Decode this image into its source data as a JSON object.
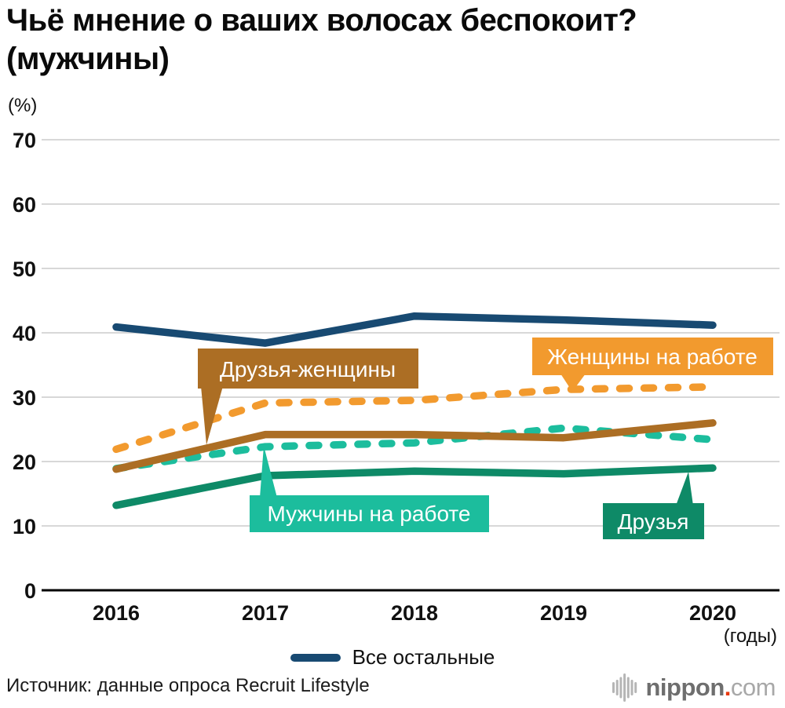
{
  "title": {
    "line1": "Чьё мнение о ваших волосах беспокоит?",
    "line2": "(мужчины)"
  },
  "axis": {
    "y_unit": "(%)",
    "x_unit": "(годы)",
    "y_ticks": [
      "70",
      "60",
      "50",
      "40",
      "30",
      "20",
      "10",
      "0"
    ],
    "x_ticks": [
      "2016",
      "2017",
      "2018",
      "2019",
      "2020"
    ]
  },
  "legend": {
    "label": "Все остальные"
  },
  "callouts": [
    {
      "label": "Друзья-женщины",
      "color": "#ac6e24"
    },
    {
      "label": "Женщины на работе",
      "color": "#f29a2e"
    },
    {
      "label": "Мужчины на работе",
      "color": "#1cbd9d"
    },
    {
      "label": "Друзья",
      "color": "#0e8a67"
    }
  ],
  "source": {
    "text": "Источник: данные опроса Recruit Lifestyle"
  },
  "logo": {
    "name": "nippon",
    "dot": ".",
    "tld": "com"
  },
  "chart_data": {
    "type": "line",
    "title": "Чьё мнение о ваших волосах беспокоит? (мужчины)",
    "xlabel": "(годы)",
    "ylabel": "(%)",
    "x": [
      2016,
      2017,
      2018,
      2019,
      2020
    ],
    "ylim": [
      0,
      75
    ],
    "grid": true,
    "legend_position": "bottom",
    "series": [
      {
        "name": "Все остальные",
        "values": [
          40.9,
          38.4,
          42.6,
          42.0,
          41.2
        ],
        "color": "#184a72",
        "style": "solid",
        "z": 5
      },
      {
        "name": "Женщины на работе",
        "values": [
          21.9,
          29.1,
          29.5,
          31.2,
          31.6
        ],
        "color": "#f29a2e",
        "style": "dashed",
        "z": 4
      },
      {
        "name": "Друзья-женщины",
        "values": [
          18.8,
          24.2,
          24.2,
          23.7,
          26.0
        ],
        "color": "#ac6e24",
        "style": "solid",
        "z": 3
      },
      {
        "name": "Мужчины на работе",
        "values": [
          18.9,
          22.3,
          22.9,
          25.2,
          23.4
        ],
        "color": "#1cbd9d",
        "style": "dashed",
        "z": 1
      },
      {
        "name": "Друзья",
        "values": [
          13.2,
          17.8,
          18.5,
          18.1,
          19.0
        ],
        "color": "#0e8a67",
        "style": "solid",
        "z": 2
      }
    ]
  }
}
